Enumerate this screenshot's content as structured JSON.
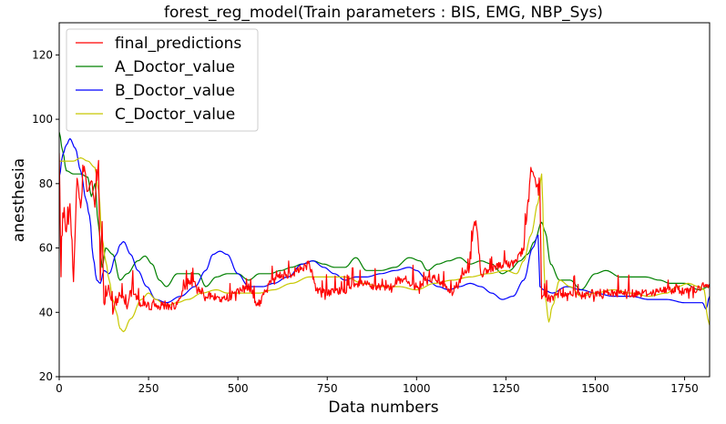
{
  "chart_data": {
    "type": "line",
    "title": "forest_reg_model(Train parameters : BIS, EMG, NBP_Sys)",
    "xlabel": "Data numbers",
    "ylabel": "anesthesia",
    "xlim": [
      0,
      1820
    ],
    "ylim": [
      20,
      130
    ],
    "x_ticks": [
      0,
      250,
      500,
      750,
      1000,
      1250,
      1500,
      1750
    ],
    "y_ticks": [
      20,
      40,
      60,
      80,
      100,
      120
    ],
    "grid": false,
    "legend_position": "top-left",
    "series": [
      {
        "name": "final_predictions",
        "color": "#ff0000",
        "jitter": true,
        "points": [
          [
            0,
            90
          ],
          [
            5,
            50
          ],
          [
            10,
            72
          ],
          [
            20,
            65
          ],
          [
            30,
            73
          ],
          [
            40,
            50
          ],
          [
            50,
            82
          ],
          [
            60,
            73
          ],
          [
            70,
            86
          ],
          [
            80,
            77
          ],
          [
            90,
            82
          ],
          [
            100,
            73
          ],
          [
            110,
            86
          ],
          [
            115,
            50
          ],
          [
            120,
            68
          ],
          [
            125,
            42
          ],
          [
            130,
            45
          ],
          [
            140,
            48
          ],
          [
            150,
            40
          ],
          [
            170,
            46
          ],
          [
            190,
            42
          ],
          [
            200,
            48
          ],
          [
            230,
            42
          ],
          [
            300,
            42
          ],
          [
            330,
            42
          ],
          [
            360,
            50
          ],
          [
            420,
            45
          ],
          [
            460,
            44
          ],
          [
            530,
            48
          ],
          [
            555,
            42
          ],
          [
            600,
            51
          ],
          [
            650,
            52
          ],
          [
            700,
            55
          ],
          [
            720,
            47
          ],
          [
            750,
            46
          ],
          [
            800,
            47
          ],
          [
            850,
            49
          ],
          [
            900,
            47
          ],
          [
            950,
            50
          ],
          [
            1000,
            48
          ],
          [
            1050,
            51
          ],
          [
            1100,
            46
          ],
          [
            1130,
            52
          ],
          [
            1150,
            53
          ],
          [
            1160,
            68
          ],
          [
            1170,
            65
          ],
          [
            1180,
            52
          ],
          [
            1250,
            55
          ],
          [
            1270,
            55
          ],
          [
            1300,
            60
          ],
          [
            1320,
            84
          ],
          [
            1335,
            80
          ],
          [
            1345,
            78
          ],
          [
            1350,
            44
          ],
          [
            1360,
            45
          ],
          [
            1380,
            44
          ],
          [
            1400,
            46
          ],
          [
            1450,
            45
          ],
          [
            1500,
            46
          ],
          [
            1550,
            46
          ],
          [
            1620,
            46
          ],
          [
            1650,
            46
          ],
          [
            1700,
            47
          ],
          [
            1750,
            47
          ],
          [
            1780,
            47
          ],
          [
            1800,
            48
          ],
          [
            1820,
            48
          ]
        ]
      },
      {
        "name": "A_Doctor_value",
        "color": "#008000",
        "jitter": false,
        "points": [
          [
            0,
            96
          ],
          [
            10,
            90
          ],
          [
            20,
            84
          ],
          [
            40,
            83
          ],
          [
            60,
            83
          ],
          [
            80,
            82
          ],
          [
            90,
            76
          ],
          [
            100,
            80
          ],
          [
            110,
            67
          ],
          [
            120,
            54
          ],
          [
            130,
            60
          ],
          [
            150,
            58
          ],
          [
            170,
            50
          ],
          [
            190,
            52
          ],
          [
            220,
            56
          ],
          [
            240,
            57.5
          ],
          [
            260,
            55
          ],
          [
            280,
            50
          ],
          [
            300,
            48
          ],
          [
            330,
            52
          ],
          [
            360,
            52
          ],
          [
            390,
            52
          ],
          [
            410,
            48
          ],
          [
            440,
            51
          ],
          [
            470,
            52
          ],
          [
            500,
            52
          ],
          [
            530,
            50
          ],
          [
            560,
            52
          ],
          [
            590,
            52
          ],
          [
            620,
            53
          ],
          [
            650,
            54
          ],
          [
            680,
            55
          ],
          [
            710,
            56
          ],
          [
            740,
            55
          ],
          [
            770,
            54
          ],
          [
            800,
            54
          ],
          [
            830,
            57
          ],
          [
            860,
            53
          ],
          [
            900,
            53
          ],
          [
            940,
            54
          ],
          [
            980,
            57
          ],
          [
            1010,
            56
          ],
          [
            1030,
            53
          ],
          [
            1060,
            55
          ],
          [
            1090,
            56
          ],
          [
            1120,
            57
          ],
          [
            1150,
            55
          ],
          [
            1180,
            56
          ],
          [
            1210,
            55
          ],
          [
            1240,
            52
          ],
          [
            1260,
            53
          ],
          [
            1290,
            56
          ],
          [
            1310,
            58
          ],
          [
            1330,
            62
          ],
          [
            1350,
            68
          ],
          [
            1360,
            65
          ],
          [
            1375,
            55
          ],
          [
            1400,
            50
          ],
          [
            1430,
            50
          ],
          [
            1460,
            47
          ],
          [
            1500,
            52
          ],
          [
            1530,
            53
          ],
          [
            1570,
            51
          ],
          [
            1600,
            51
          ],
          [
            1640,
            51
          ],
          [
            1680,
            50
          ],
          [
            1710,
            49
          ],
          [
            1750,
            49
          ],
          [
            1790,
            47
          ],
          [
            1820,
            48
          ]
        ]
      },
      {
        "name": "B_Doctor_value",
        "color": "#0000ff",
        "jitter": false,
        "points": [
          [
            0,
            82
          ],
          [
            10,
            89
          ],
          [
            20,
            92
          ],
          [
            30,
            94
          ],
          [
            45,
            91
          ],
          [
            60,
            84
          ],
          [
            75,
            75
          ],
          [
            85,
            70
          ],
          [
            95,
            57
          ],
          [
            105,
            50
          ],
          [
            115,
            49
          ],
          [
            125,
            53
          ],
          [
            140,
            52
          ],
          [
            160,
            58
          ],
          [
            170,
            61
          ],
          [
            180,
            62
          ],
          [
            200,
            58
          ],
          [
            220,
            53
          ],
          [
            245,
            48
          ],
          [
            270,
            44
          ],
          [
            300,
            43
          ],
          [
            340,
            45
          ],
          [
            380,
            48
          ],
          [
            410,
            53
          ],
          [
            430,
            58
          ],
          [
            450,
            59
          ],
          [
            470,
            58
          ],
          [
            500,
            52
          ],
          [
            530,
            48
          ],
          [
            570,
            48
          ],
          [
            600,
            49
          ],
          [
            640,
            51
          ],
          [
            680,
            55
          ],
          [
            710,
            56
          ],
          [
            740,
            54
          ],
          [
            770,
            52
          ],
          [
            800,
            50
          ],
          [
            830,
            51
          ],
          [
            860,
            51
          ],
          [
            900,
            52
          ],
          [
            940,
            53
          ],
          [
            980,
            54
          ],
          [
            1000,
            53
          ],
          [
            1030,
            50
          ],
          [
            1060,
            48
          ],
          [
            1090,
            47
          ],
          [
            1120,
            48
          ],
          [
            1150,
            49
          ],
          [
            1180,
            48
          ],
          [
            1210,
            46
          ],
          [
            1240,
            44
          ],
          [
            1270,
            45
          ],
          [
            1300,
            50
          ],
          [
            1325,
            60
          ],
          [
            1340,
            64
          ],
          [
            1345,
            48
          ],
          [
            1355,
            47
          ],
          [
            1380,
            46
          ],
          [
            1420,
            48
          ],
          [
            1460,
            47
          ],
          [
            1500,
            46
          ],
          [
            1550,
            45
          ],
          [
            1600,
            45
          ],
          [
            1650,
            44
          ],
          [
            1700,
            44
          ],
          [
            1750,
            43
          ],
          [
            1800,
            43
          ],
          [
            1810,
            41
          ],
          [
            1820,
            45
          ]
        ]
      },
      {
        "name": "C_Doctor_value",
        "color": "#c8c800",
        "jitter": false,
        "points": [
          [
            0,
            87
          ],
          [
            20,
            87
          ],
          [
            40,
            87
          ],
          [
            60,
            88
          ],
          [
            80,
            87
          ],
          [
            100,
            85
          ],
          [
            110,
            78
          ],
          [
            120,
            63
          ],
          [
            130,
            56
          ],
          [
            140,
            50
          ],
          [
            150,
            44
          ],
          [
            160,
            40
          ],
          [
            170,
            35
          ],
          [
            180,
            34
          ],
          [
            200,
            38
          ],
          [
            230,
            44
          ],
          [
            250,
            46
          ],
          [
            270,
            44
          ],
          [
            300,
            42
          ],
          [
            330,
            43
          ],
          [
            360,
            44
          ],
          [
            400,
            46
          ],
          [
            440,
            47
          ],
          [
            470,
            46
          ],
          [
            500,
            46
          ],
          [
            530,
            46
          ],
          [
            560,
            46
          ],
          [
            600,
            47
          ],
          [
            650,
            49
          ],
          [
            700,
            51
          ],
          [
            750,
            51
          ],
          [
            800,
            51
          ],
          [
            850,
            49
          ],
          [
            900,
            48
          ],
          [
            950,
            48
          ],
          [
            1000,
            47
          ],
          [
            1050,
            49
          ],
          [
            1100,
            50
          ],
          [
            1150,
            51
          ],
          [
            1200,
            52
          ],
          [
            1250,
            53
          ],
          [
            1280,
            52
          ],
          [
            1300,
            56
          ],
          [
            1320,
            64
          ],
          [
            1340,
            74
          ],
          [
            1350,
            83
          ],
          [
            1360,
            45
          ],
          [
            1370,
            37
          ],
          [
            1380,
            42
          ],
          [
            1400,
            50
          ],
          [
            1430,
            48
          ],
          [
            1460,
            45
          ],
          [
            1500,
            46
          ],
          [
            1550,
            47
          ],
          [
            1600,
            46
          ],
          [
            1650,
            45
          ],
          [
            1700,
            46
          ],
          [
            1730,
            48
          ],
          [
            1760,
            49
          ],
          [
            1790,
            48
          ],
          [
            1805,
            47
          ],
          [
            1815,
            38
          ],
          [
            1820,
            36
          ]
        ]
      }
    ]
  }
}
